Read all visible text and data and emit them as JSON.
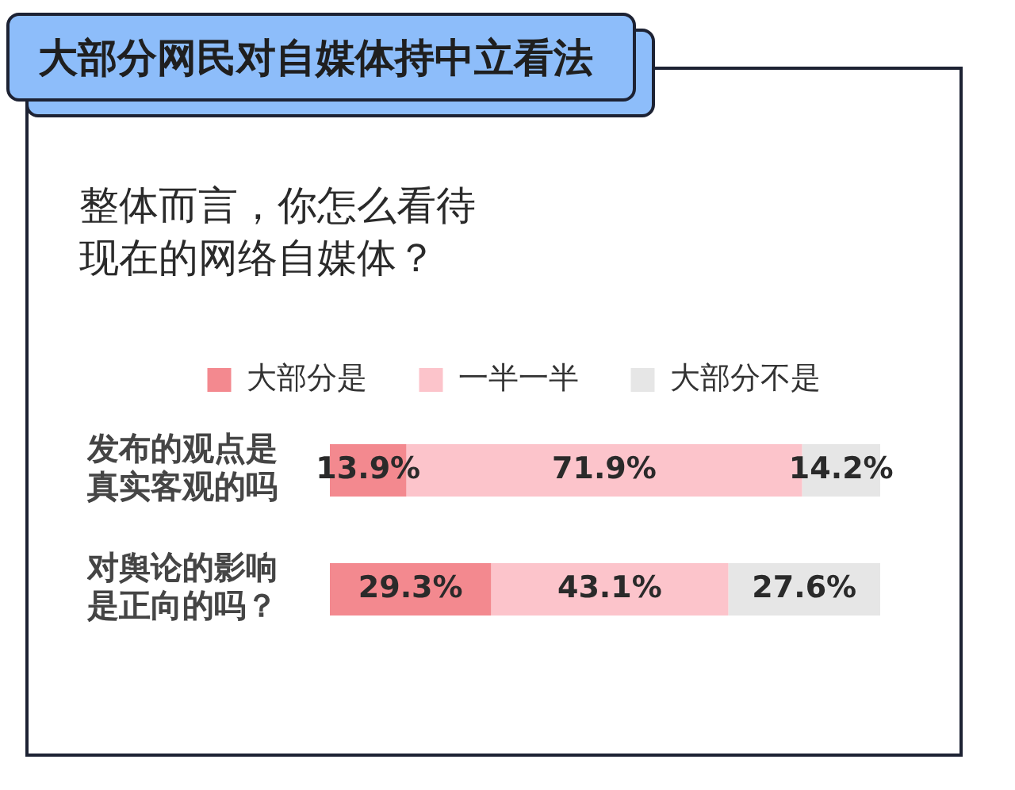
{
  "chart_data": {
    "type": "bar",
    "title": "大部分网民对自媒体持中立看法",
    "subtitle": "整体而言，你怎么看待现在的网络自媒体？",
    "orientation": "horizontal",
    "stacked": true,
    "legend": "top",
    "tick_labels": "y",
    "xlim": [
      0,
      100
    ],
    "categories": [
      "发布的观点是真实客观的吗",
      "对舆论的影响是正向的吗？"
    ],
    "series": [
      {
        "name": "大部分是",
        "color": "#f3898f",
        "values": [
          13.9,
          29.3
        ],
        "value_labels": [
          "13.9%",
          "29.3%"
        ]
      },
      {
        "name": "一半一半",
        "color": "#fcc4cb",
        "values": [
          71.9,
          43.1
        ],
        "value_labels": [
          "71.9%",
          "43.1%"
        ]
      },
      {
        "name": "大部分不是",
        "color": "#e6e6e6",
        "values": [
          14.2,
          27.6
        ],
        "value_labels": [
          "14.2%",
          "27.6%"
        ]
      }
    ]
  }
}
